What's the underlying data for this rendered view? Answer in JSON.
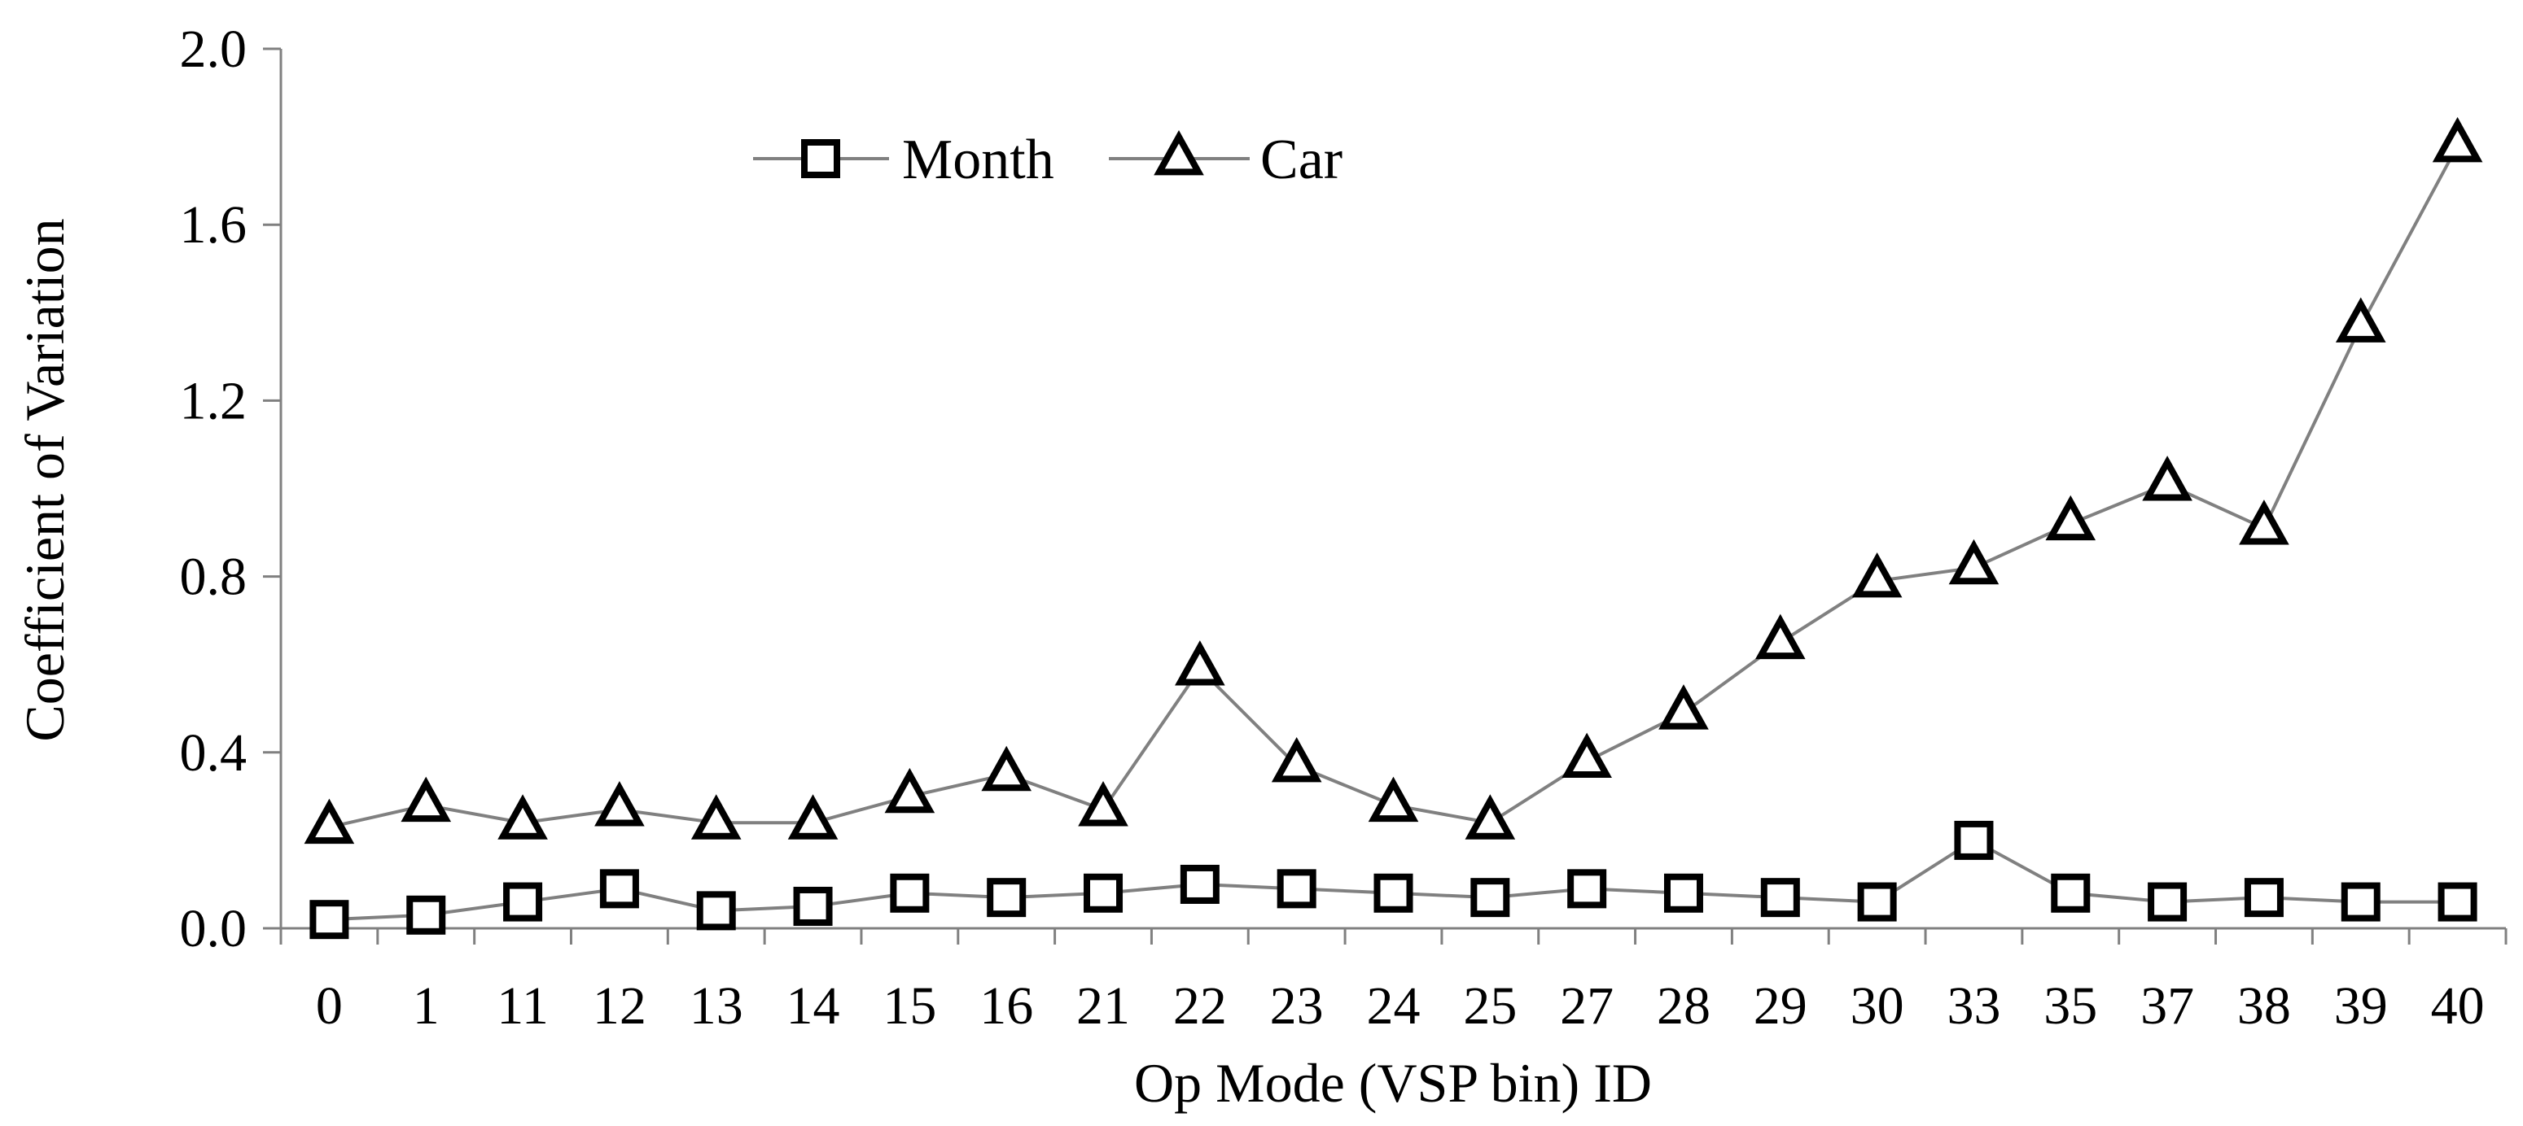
{
  "chart_data": {
    "type": "line",
    "xlabel": "Op Mode (VSP bin) ID",
    "ylabel": "Coefficient of Variation",
    "ylim": [
      0,
      2.0
    ],
    "yticks": [
      "0.0",
      "0.4",
      "0.8",
      "1.2",
      "1.6",
      "2.0"
    ],
    "grid": false,
    "legend_position": "top-center",
    "categories": [
      "0",
      "1",
      "11",
      "12",
      "13",
      "14",
      "15",
      "16",
      "21",
      "22",
      "23",
      "24",
      "25",
      "27",
      "28",
      "29",
      "30",
      "33",
      "35",
      "37",
      "38",
      "39",
      "40"
    ],
    "series": [
      {
        "name": "Month",
        "marker": "square",
        "color": "#808080",
        "values": [
          0.02,
          0.03,
          0.06,
          0.09,
          0.04,
          0.05,
          0.08,
          0.07,
          0.08,
          0.1,
          0.09,
          0.08,
          0.07,
          0.09,
          0.08,
          0.07,
          0.06,
          0.2,
          0.08,
          0.06,
          0.07,
          0.06,
          0.06
        ]
      },
      {
        "name": "Car",
        "marker": "triangle",
        "color": "#808080",
        "values": [
          0.23,
          0.28,
          0.24,
          0.27,
          0.24,
          0.24,
          0.3,
          0.35,
          0.27,
          0.59,
          0.37,
          0.28,
          0.24,
          0.38,
          0.49,
          0.65,
          0.79,
          0.82,
          0.92,
          1.01,
          0.91,
          1.37,
          1.78
        ]
      }
    ]
  }
}
